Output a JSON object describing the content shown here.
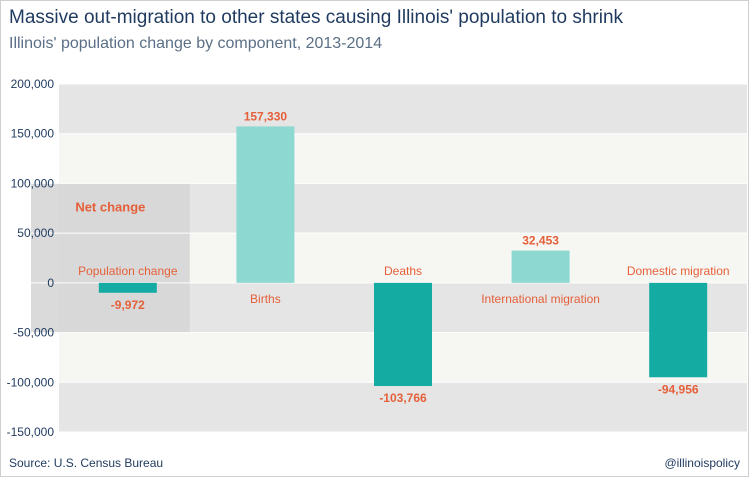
{
  "title": "Massive out-migration to other states causing Illinois' population to shrink",
  "subtitle": "Illinois' population change by component, 2013-2014",
  "source": "Source: U.S. Census Bureau",
  "credit": "@illinoispolicy",
  "net_change_label": "Net change",
  "colors": {
    "positive_bar": "#8dd8d1",
    "negative_bar": "#14aca2",
    "label_text": "#e5603a",
    "band_dark": "#e5e5e5",
    "band_light": "#f6f6f2",
    "net_change_box": "#d6d6d6",
    "axis_text": "#1f3a5f"
  },
  "chart_data": {
    "type": "bar",
    "categories": [
      "Population change",
      "Births",
      "Deaths",
      "International migration",
      "Domestic migration"
    ],
    "values": [
      -9972,
      157330,
      -103766,
      32453,
      -94956
    ],
    "value_labels": [
      "-9,972",
      "157,330",
      "-103,766",
      "32,453",
      "-94,956"
    ],
    "ylim": [
      -150000,
      200000
    ],
    "yticks": [
      200000,
      150000,
      100000,
      50000,
      0,
      -50000,
      -100000,
      -150000
    ],
    "ytick_labels": [
      "200,000",
      "150,000",
      "100,000",
      "50,000",
      "0",
      "-50,000",
      "-100,000",
      "-150,000"
    ],
    "xlabel": "",
    "ylabel": "",
    "grid": "alternating horizontal bands"
  }
}
